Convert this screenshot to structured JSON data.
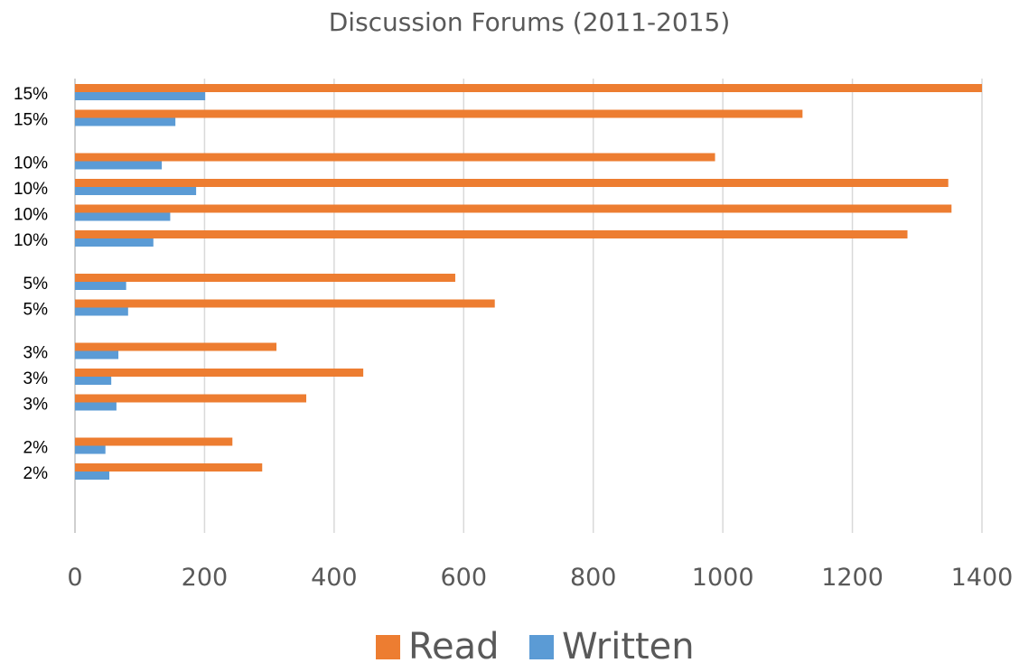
{
  "chart_data": {
    "type": "bar",
    "orientation": "horizontal",
    "title": "Discussion Forums (2011-2015)",
    "xlabel": "",
    "ylabel": "",
    "xlim": [
      0,
      1400
    ],
    "x_ticks": [
      0,
      200,
      400,
      600,
      800,
      1000,
      1200,
      1400
    ],
    "grid": true,
    "legend_placement": "bottom",
    "categories": [
      "15%",
      "15%",
      "10%",
      "10%",
      "10%",
      "10%",
      "5%",
      "5%",
      "3%",
      "3%",
      "3%",
      "2%",
      "2%"
    ],
    "series": [
      {
        "name": "Read",
        "color": "#ed7d31",
        "values": [
          1400,
          1123,
          988,
          1348,
          1353,
          1285,
          587,
          648,
          311,
          445,
          357,
          243,
          289
        ]
      },
      {
        "name": "Written",
        "color": "#5b9bd5",
        "values": [
          201,
          155,
          134,
          187,
          147,
          121,
          79,
          82,
          67,
          56,
          64,
          47,
          53
        ]
      }
    ]
  }
}
